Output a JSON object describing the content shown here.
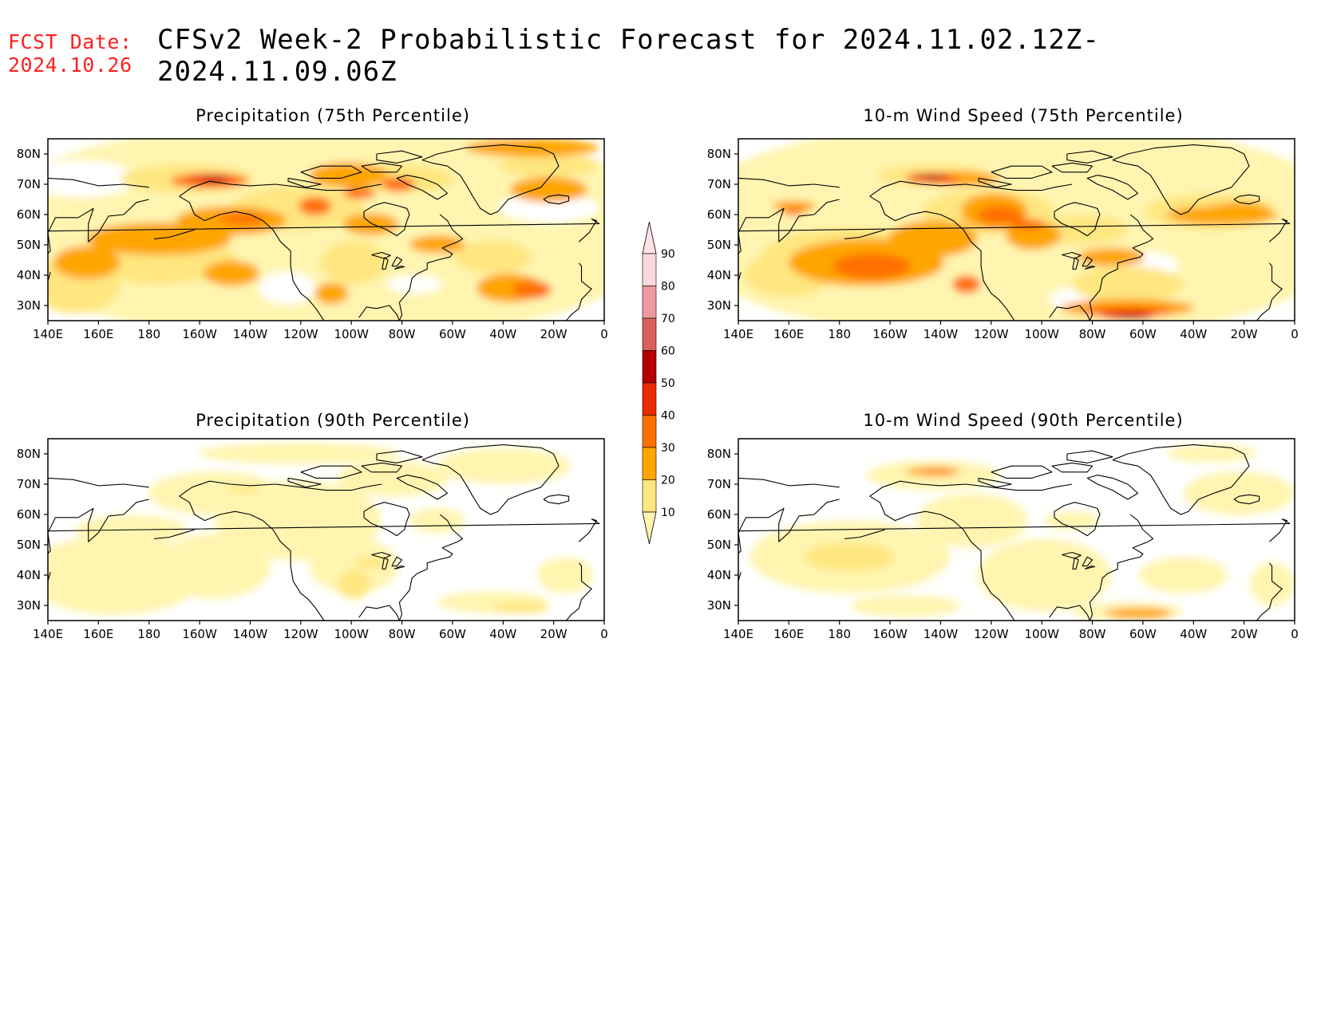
{
  "header": {
    "fcst_label": "FCST Date:",
    "fcst_date": "2024.10.26",
    "title": "CFSv2 Week-2 Probabilistic Forecast for 2024.11.02.12Z-2024.11.09.06Z"
  },
  "axes": {
    "x_ticks": [
      "140E",
      "160E",
      "180",
      "160W",
      "140W",
      "120W",
      "100W",
      "80W",
      "60W",
      "40W",
      "20W",
      "0"
    ],
    "y_ticks": [
      "80N",
      "70N",
      "60N",
      "50N",
      "40N",
      "30N"
    ]
  },
  "panels": [
    {
      "title": "Precipitation (75th Percentile)",
      "field": "precip75"
    },
    {
      "title": "10-m Wind Speed (75th Percentile)",
      "field": "wind75"
    },
    {
      "title": "Precipitation (90th Percentile)",
      "field": "precip90"
    },
    {
      "title": "10-m Wind Speed (90th Percentile)",
      "field": "wind90"
    }
  ],
  "colorbar": {
    "levels": [
      "10",
      "20",
      "30",
      "40",
      "50",
      "60",
      "70",
      "80",
      "90"
    ],
    "colors": [
      "#fff5b0",
      "#ffe680",
      "#ffa500",
      "#ff7000",
      "#ea2a00",
      "#b40000",
      "#d8605a",
      "#ec9a9f",
      "#fbd8dc"
    ]
  }
}
